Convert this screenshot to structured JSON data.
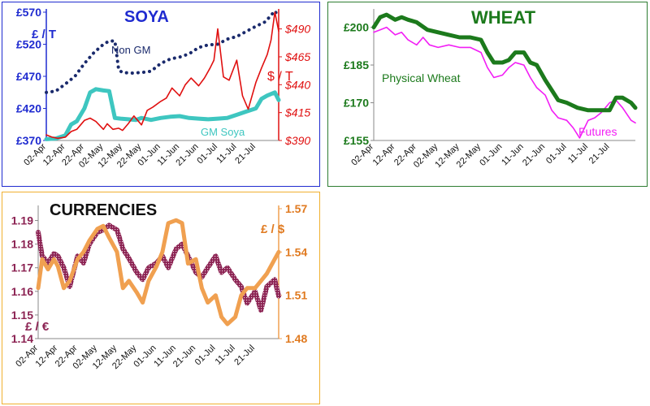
{
  "chart_data": [
    {
      "id": "soya",
      "type": "line",
      "title": "SOYA",
      "title_color": "#1f2bd0",
      "left_axis_label": "£ / T",
      "right_axis_label": "$ / T",
      "categories": [
        "02-Apr",
        "12-Apr",
        "22-Apr",
        "02-May",
        "12-May",
        "22-May",
        "01-Jun",
        "11-Jun",
        "21-Jun",
        "01-Jul",
        "11-Jul",
        "21-Jul"
      ],
      "left_ticks": [
        "£570",
        "£520",
        "£470",
        "£420",
        "£370"
      ],
      "right_ticks": [
        "$490",
        "$465",
        "$440",
        "$415",
        "$390"
      ],
      "ylim_left": [
        370,
        570
      ],
      "ylim_right": [
        390,
        505
      ],
      "x_range": [
        0,
        12.2
      ],
      "series": [
        {
          "name": "Non GM",
          "axis": "left",
          "color": "#1a2a6c",
          "style": "dotted",
          "x": [
            0,
            0.5,
            1,
            1.5,
            2,
            2.5,
            3,
            3.3,
            3.6,
            3.8,
            4,
            4.5,
            5,
            5.5,
            6,
            6.5,
            7,
            7.5,
            8,
            8.5,
            9,
            9.5,
            10,
            10.5,
            11,
            11.5,
            12,
            12.2
          ],
          "y": [
            445,
            447,
            458,
            470,
            490,
            507,
            520,
            525,
            525,
            480,
            476,
            475,
            476,
            478,
            490,
            497,
            500,
            505,
            515,
            519,
            520,
            528,
            532,
            540,
            548,
            555,
            572,
            562
          ]
        },
        {
          "name": "GM Soya",
          "axis": "left",
          "color": "#3ec6c0",
          "style": "solid",
          "x": [
            0,
            0.5,
            1,
            1.3,
            1.6,
            2,
            2.3,
            2.6,
            3,
            3.3,
            3.6,
            3.9,
            4.3,
            4.7,
            5,
            5.5,
            6,
            6.5,
            7,
            7.5,
            8,
            8.5,
            9,
            9.5,
            10,
            10.5,
            11,
            11.3,
            11.6,
            12,
            12.2
          ],
          "y": [
            372,
            373,
            378,
            395,
            400,
            420,
            445,
            450,
            448,
            447,
            405,
            404,
            403,
            402,
            405,
            402,
            405,
            407,
            408,
            405,
            404,
            403,
            404,
            405,
            410,
            415,
            420,
            435,
            440,
            445,
            433
          ]
        },
        {
          "name": "",
          "axis": "right",
          "color": "#e01010",
          "style": "solid",
          "x": [
            0,
            0.3,
            0.6,
            1,
            1.3,
            1.6,
            2,
            2.3,
            2.6,
            3,
            3.2,
            3.5,
            3.8,
            4,
            4.3,
            4.6,
            5,
            5.3,
            5.6,
            6,
            6.3,
            6.6,
            7,
            7.3,
            7.6,
            8,
            8.3,
            8.6,
            8.8,
            9,
            9.3,
            9.6,
            10,
            10.3,
            10.6,
            11,
            11.3,
            11.6,
            11.8,
            12,
            12.2
          ],
          "y": [
            395,
            393,
            392,
            393,
            398,
            400,
            408,
            410,
            407,
            400,
            405,
            400,
            401,
            399,
            405,
            412,
            404,
            417,
            420,
            425,
            428,
            437,
            430,
            440,
            446,
            439,
            446,
            455,
            462,
            490,
            447,
            444,
            462,
            430,
            418,
            442,
            455,
            467,
            480,
            505,
            488
          ]
        }
      ]
    },
    {
      "id": "wheat",
      "type": "line",
      "title": "WHEAT",
      "title_color": "#1c7a1c",
      "categories": [
        "02-Apr",
        "12-Apr",
        "22-Apr",
        "02-May",
        "12-May",
        "22-May",
        "01-Jun",
        "11-Jun",
        "21-Jun",
        "01-Jul",
        "11-Jul",
        "21-Jul"
      ],
      "left_ticks": [
        "£200",
        "£185",
        "£170",
        "£155"
      ],
      "ylim": [
        155,
        206
      ],
      "x_range": [
        0,
        12.2
      ],
      "series": [
        {
          "name": "Physical Wheat",
          "axis": "left",
          "color": "#1c7a1c",
          "style": "thick",
          "x": [
            0,
            0.3,
            0.6,
            1,
            1.3,
            1.6,
            2,
            2.5,
            3,
            3.5,
            4,
            4.5,
            5,
            5.3,
            5.6,
            6,
            6.3,
            6.6,
            7,
            7.3,
            7.6,
            8,
            8.3,
            8.6,
            9,
            9.5,
            10,
            10.5,
            11,
            11.3,
            11.6,
            12,
            12.2
          ],
          "y": [
            200,
            204,
            205,
            203,
            204,
            203,
            202,
            199,
            198,
            197,
            196,
            196,
            195,
            190,
            186,
            186,
            187,
            190,
            190,
            186,
            185,
            179,
            175,
            171,
            170,
            168,
            167,
            167,
            167,
            172,
            172,
            170,
            168
          ]
        },
        {
          "name": "Futures",
          "axis": "left",
          "color": "#f21ef5",
          "style": "solid",
          "x": [
            0,
            0.3,
            0.6,
            1,
            1.3,
            1.6,
            2,
            2.3,
            2.6,
            3,
            3.5,
            4,
            4.5,
            5,
            5.3,
            5.6,
            6,
            6.3,
            6.6,
            7,
            7.3,
            7.6,
            8,
            8.3,
            8.6,
            9,
            9.3,
            9.6,
            10,
            10.3,
            10.6,
            11,
            11.3,
            11.6,
            12,
            12.2
          ],
          "y": [
            198,
            199,
            200,
            197,
            198,
            195,
            193,
            196,
            193,
            192,
            193,
            192,
            192,
            190,
            184,
            180,
            181,
            184,
            186,
            185,
            180,
            176,
            173,
            167,
            164,
            163,
            160,
            156,
            163,
            164,
            166,
            170,
            171,
            168,
            163,
            162
          ]
        }
      ]
    },
    {
      "id": "currencies",
      "type": "line",
      "title": "CURRENCIES",
      "title_color": "#111111",
      "left_axis_label": "£ / €",
      "right_axis_label": "£ / $",
      "categories": [
        "02-Apr",
        "12-Apr",
        "22-Apr",
        "02-May",
        "12-May",
        "22-May",
        "01-Jun",
        "11-Jun",
        "21-Jun",
        "01-Jul",
        "11-Jul",
        "21-Jul"
      ],
      "left_ticks": [
        "1.19",
        "1.18",
        "1.17",
        "1.16",
        "1.15",
        "1.14"
      ],
      "right_ticks": [
        "1.57",
        "1.54",
        "1.51",
        "1.48"
      ],
      "ylim_left": [
        1.14,
        1.195
      ],
      "ylim_right": [
        1.48,
        1.57
      ],
      "x_range": [
        0,
        12.2
      ],
      "series": [
        {
          "name": "",
          "axis": "left",
          "color": "#8b2252",
          "style": "hatched",
          "x": [
            0,
            0.2,
            0.5,
            0.8,
            1,
            1.3,
            1.6,
            2,
            2.3,
            2.6,
            3,
            3.3,
            3.6,
            4,
            4.3,
            4.6,
            5,
            5.3,
            5.6,
            6,
            6.3,
            6.6,
            7,
            7.3,
            7.6,
            8,
            8.3,
            8.6,
            9,
            9.3,
            9.6,
            10,
            10.3,
            10.6,
            11,
            11.3,
            11.6,
            12,
            12.2
          ],
          "y": [
            1.185,
            1.175,
            1.172,
            1.176,
            1.175,
            1.17,
            1.162,
            1.175,
            1.172,
            1.18,
            1.185,
            1.186,
            1.188,
            1.186,
            1.178,
            1.174,
            1.168,
            1.165,
            1.17,
            1.172,
            1.175,
            1.17,
            1.178,
            1.18,
            1.175,
            1.168,
            1.166,
            1.17,
            1.175,
            1.168,
            1.17,
            1.165,
            1.162,
            1.155,
            1.16,
            1.152,
            1.162,
            1.165,
            1.158
          ]
        },
        {
          "name": "",
          "axis": "right",
          "color": "#f0a050",
          "style": "thick",
          "x": [
            0,
            0.2,
            0.5,
            0.8,
            1,
            1.3,
            1.6,
            2,
            2.3,
            2.6,
            3,
            3.3,
            3.6,
            4,
            4.3,
            4.6,
            5,
            5.3,
            5.6,
            6,
            6.3,
            6.6,
            7,
            7.3,
            7.6,
            8,
            8.3,
            8.6,
            9,
            9.3,
            9.6,
            10,
            10.3,
            10.6,
            11,
            11.3,
            11.6,
            12,
            12.2
          ],
          "y": [
            1.515,
            1.535,
            1.528,
            1.535,
            1.53,
            1.515,
            1.52,
            1.535,
            1.54,
            1.548,
            1.556,
            1.558,
            1.55,
            1.54,
            1.515,
            1.52,
            1.512,
            1.505,
            1.52,
            1.53,
            1.54,
            1.56,
            1.562,
            1.56,
            1.532,
            1.535,
            1.515,
            1.505,
            1.51,
            1.495,
            1.49,
            1.495,
            1.51,
            1.515,
            1.515,
            1.52,
            1.525,
            1.535,
            1.54
          ]
        }
      ]
    }
  ]
}
